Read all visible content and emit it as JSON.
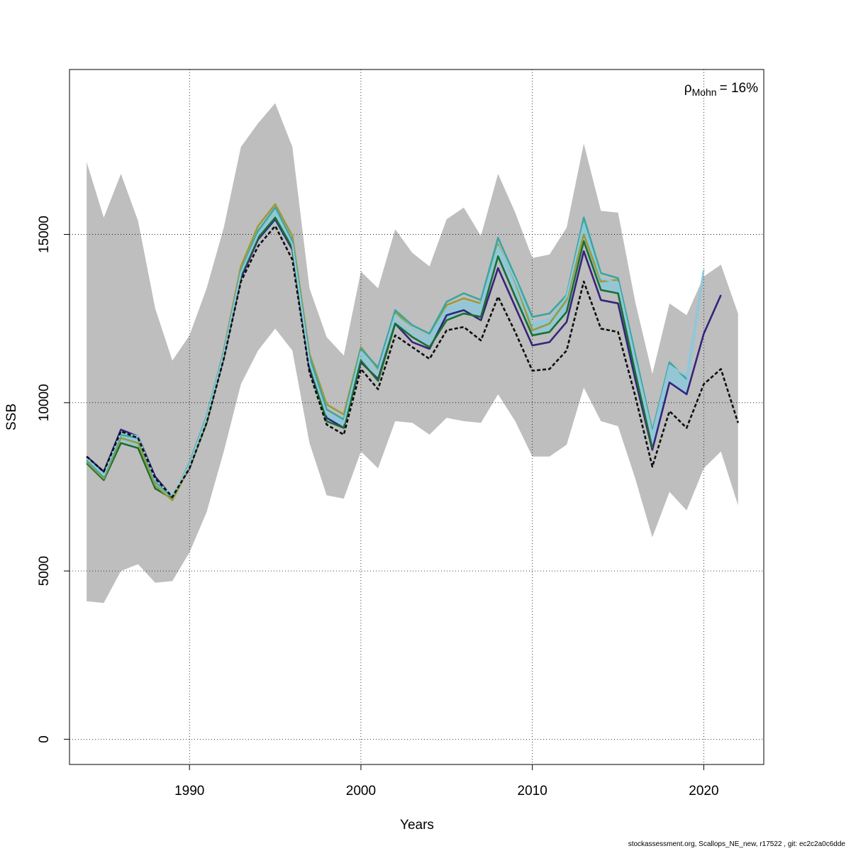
{
  "chart_data": {
    "type": "line",
    "xlabel": "Years",
    "ylabel": "SSB",
    "xlim": [
      1983,
      2023.5
    ],
    "ylim": [
      -750,
      19900
    ],
    "xticks": [
      1990,
      2000,
      2010,
      2020
    ],
    "yticks": [
      0,
      5000,
      10000,
      15000
    ],
    "grid": true,
    "annotation": {
      "rho_symbol": "ρ",
      "rho_subscript": "Mohn",
      "rho_value": "= 16%"
    },
    "confidence_band": {
      "x": [
        1984,
        1985,
        1986,
        1987,
        1988,
        1989,
        1990,
        1991,
        1992,
        1993,
        1994,
        1995,
        1996,
        1997,
        1998,
        1999,
        2000,
        2001,
        2002,
        2003,
        2004,
        2005,
        2006,
        2007,
        2008,
        2009,
        2010,
        2011,
        2012,
        2013,
        2014,
        2015,
        2016,
        2017,
        2018,
        2019,
        2020,
        2021,
        2022
      ],
      "upper": [
        17150,
        15500,
        16800,
        15400,
        12800,
        11250,
        12000,
        13400,
        15200,
        17600,
        18300,
        18900,
        17600,
        13400,
        11950,
        11400,
        13900,
        13400,
        15150,
        14450,
        14050,
        15450,
        15800,
        14950,
        16800,
        15650,
        14300,
        14400,
        15200,
        17700,
        15700,
        15650,
        13000,
        10850,
        12950,
        12600,
        13750,
        14100,
        12650
      ],
      "lower": [
        4100,
        4050,
        5000,
        5200,
        4650,
        4700,
        5550,
        6750,
        8550,
        10550,
        11550,
        12200,
        11550,
        8800,
        7250,
        7150,
        8550,
        8050,
        9450,
        9400,
        9050,
        9550,
        9450,
        9400,
        10250,
        9450,
        8400,
        8400,
        8750,
        10450,
        9450,
        9300,
        7750,
        6000,
        7350,
        6800,
        8050,
        8550,
        6950
      ]
    },
    "peel_fill": {
      "x": [
        1984,
        1985,
        1986,
        1987,
        1988,
        1989,
        1990,
        1991,
        1992,
        1993,
        1994,
        1995,
        1996,
        1997,
        1998,
        1999,
        2000,
        2001,
        2002,
        2003,
        2004,
        2005,
        2006,
        2007,
        2008,
        2009,
        2010,
        2011,
        2012,
        2013,
        2014,
        2015,
        2016,
        2017,
        2018,
        2019,
        2020
      ],
      "upper": [
        8400,
        7950,
        9200,
        9000,
        7800,
        7250,
        8200,
        9600,
        11500,
        13850,
        15000,
        15700,
        14800,
        11200,
        9700,
        9500,
        11500,
        10800,
        12500,
        12100,
        11900,
        12850,
        13000,
        12900,
        14650,
        13700,
        12400,
        12500,
        13200,
        15300,
        13700,
        13500,
        11200,
        9100,
        11100,
        10700,
        13850
      ],
      "lower": [
        8200,
        7700,
        8850,
        8700,
        7450,
        7150,
        8050,
        9400,
        11350,
        13650,
        14800,
        15350,
        14500,
        10950,
        9450,
        9250,
        11250,
        10650,
        12300,
        11950,
        11650,
        12450,
        12700,
        12500,
        14200,
        13150,
        12000,
        12100,
        12600,
        14750,
        13300,
        13200,
        10600,
        8600,
        10600,
        10200,
        13700
      ]
    },
    "series": [
      {
        "color": "#0d0d0d",
        "dash": true,
        "values": [
          8400,
          7950,
          9150,
          8950,
          7750,
          7200,
          8050,
          9400,
          11300,
          13600,
          14650,
          15250,
          14250,
          10900,
          9350,
          9050,
          11000,
          10400,
          12000,
          11650,
          11300,
          12150,
          12250,
          11850,
          13150,
          12100,
          10950,
          11000,
          11550,
          13600,
          12200,
          12100,
          10200,
          8100,
          9750,
          9250,
          10550,
          11000,
          9400
        ]
      },
      {
        "color": "#35237d",
        "values": [
          8400,
          7950,
          9200,
          9000,
          7800,
          7200,
          8050,
          9450,
          11350,
          13700,
          14850,
          15450,
          14550,
          11000,
          9550,
          9250,
          11200,
          10700,
          12350,
          11800,
          11600,
          12600,
          12750,
          12450,
          14000,
          12850,
          11700,
          11800,
          12400,
          14500,
          13050,
          12950,
          10700,
          8600,
          10600,
          10250,
          12050,
          13200
        ]
      },
      {
        "color": "#1a6e30",
        "values": [
          8200,
          7700,
          8800,
          8650,
          7450,
          7150,
          8100,
          9400,
          11400,
          13800,
          14900,
          15500,
          14600,
          11150,
          9450,
          9250,
          11250,
          10650,
          12350,
          11950,
          11650,
          12450,
          12650,
          12550,
          14350,
          13150,
          12000,
          12100,
          12700,
          14800,
          13350,
          13250,
          10900,
          8650
        ]
      },
      {
        "color": "#9a9a3a",
        "values": [
          8250,
          7750,
          8950,
          8800,
          7550,
          7100,
          8100,
          9500,
          11550,
          14050,
          15250,
          15900,
          14950,
          11450,
          9950,
          9650,
          11650,
          11000,
          12700,
          12200,
          11950,
          12900,
          13100,
          12950,
          14700,
          13600,
          12150,
          12350,
          13050,
          15000,
          13600,
          13650
        ]
      },
      {
        "color": "#3aa6a0",
        "values": [
          8300,
          7800,
          9050,
          8950,
          7650,
          7200,
          8200,
          9600,
          11500,
          13900,
          15100,
          15800,
          14800,
          11350,
          9800,
          9500,
          11600,
          11050,
          12750,
          12300,
          12050,
          13000,
          13250,
          13050,
          14900,
          13750,
          12550,
          12650,
          13200,
          15500,
          13850,
          13700,
          11450,
          9150,
          11200,
          10700
        ]
      },
      {
        "color": "#8ec8da",
        "values": [
          8350,
          7850,
          9100,
          9000,
          7700,
          7250,
          8150,
          9550,
          11450,
          13850,
          15000,
          15700,
          14700,
          11200,
          9650,
          9400,
          11500,
          10900,
          12600,
          12200,
          11950,
          12800,
          13000,
          12900,
          14650,
          13650,
          12350,
          12450,
          13150,
          15300,
          13700,
          13550,
          11250,
          9050,
          11100,
          10800,
          13950
        ]
      }
    ]
  },
  "footer": "stockassessment.org, Scallops_NE_new, r17522 , git: ec2c2a0c6dde"
}
